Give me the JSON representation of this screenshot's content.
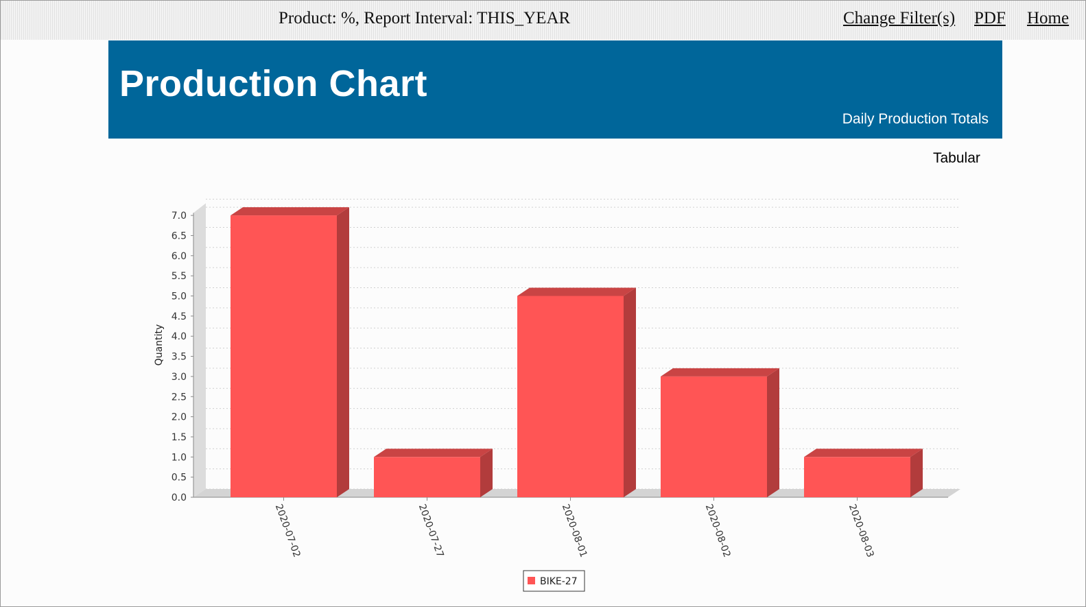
{
  "topbar": {
    "filter_text": "Product: %, Report Interval: THIS_YEAR",
    "links": {
      "change_filters": "Change Filter(s)",
      "pdf": "PDF",
      "home": "Home"
    }
  },
  "banner": {
    "title": "Production Chart",
    "subtitle": "Daily Production Totals"
  },
  "tabular_link": "Tabular",
  "colors": {
    "bar_front": "#ff5555",
    "bar_side": "#b23c3c",
    "bar_top": "#c94444",
    "banner": "#00669a"
  },
  "chart_data": {
    "type": "bar",
    "title": "",
    "xlabel": "",
    "ylabel": "Quantity",
    "categories": [
      "2020-07-02",
      "2020-07-27",
      "2020-08-01",
      "2020-08-02",
      "2020-08-03"
    ],
    "series": [
      {
        "name": "BIKE-27",
        "values": [
          7,
          1,
          5,
          3,
          1
        ]
      }
    ],
    "ylim": [
      0,
      7.2
    ],
    "yticks": [
      "0.0",
      "0.5",
      "1.0",
      "1.5",
      "2.0",
      "2.5",
      "3.0",
      "3.5",
      "4.0",
      "4.5",
      "5.0",
      "5.5",
      "6.0",
      "6.5",
      "7.0"
    ],
    "grid": true,
    "legend": "bottom-center"
  }
}
